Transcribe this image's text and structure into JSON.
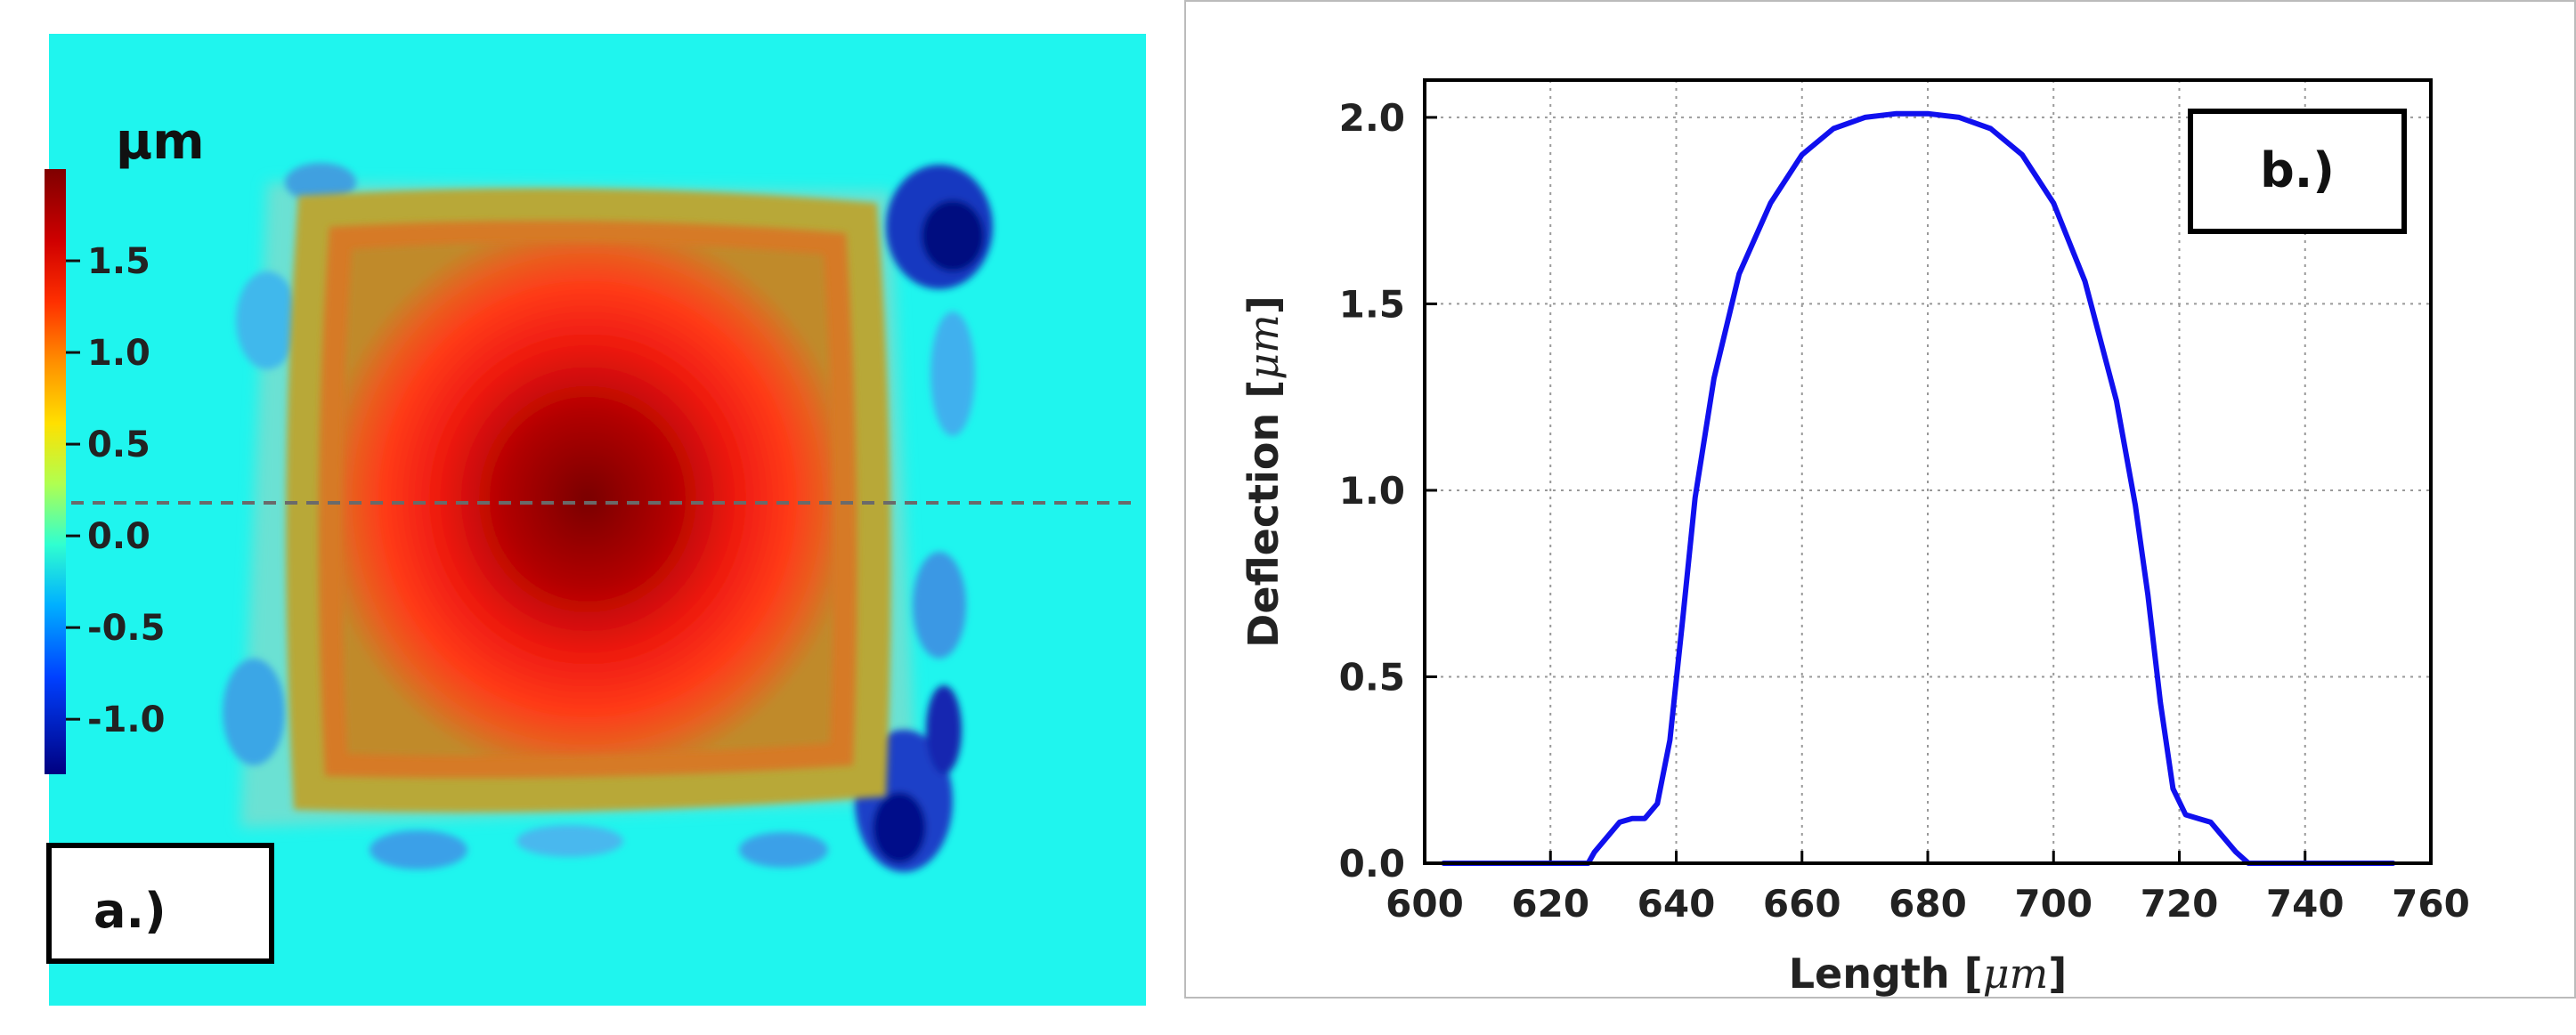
{
  "panel_a": {
    "unit_label": "μm",
    "colorbar_ticks": [
      "1.5",
      "1.0",
      "0.5",
      "0.0",
      "-0.5",
      "-1.0"
    ],
    "colorbar_values": [
      1.5,
      1.0,
      0.5,
      0.0,
      -0.5,
      -1.0
    ],
    "colorbar_range": [
      -1.3,
      2.0
    ],
    "label": "a.)",
    "colors": {
      "background": "#1FFFF0",
      "dome_center": "#8B0000",
      "dome_mid": "#FF2010",
      "dome_rim": "#B8A830"
    }
  },
  "chart_data": {
    "type": "line",
    "label": "b.)",
    "xlabel": "Length",
    "ylabel": "Deflection",
    "unit": "μm",
    "xlim": [
      600,
      760
    ],
    "ylim": [
      0.0,
      2.1
    ],
    "xticks": [
      600,
      620,
      640,
      660,
      680,
      700,
      720,
      740,
      760
    ],
    "yticks": [
      0.0,
      0.5,
      1.0,
      1.5,
      2.0
    ],
    "xtick_labels": [
      "600",
      "620",
      "640",
      "660",
      "680",
      "700",
      "720",
      "740",
      "760"
    ],
    "ytick_labels": [
      "0.0",
      "0.5",
      "1.0",
      "1.5",
      "2.0"
    ],
    "grid": true,
    "series": [
      {
        "name": "deflection",
        "color": "#1010EE",
        "x": [
          603,
          610,
          620,
          626,
          627,
          629,
          631,
          633,
          635,
          637,
          639,
          641,
          643,
          646,
          650,
          655,
          660,
          665,
          670,
          675,
          680,
          685,
          690,
          695,
          700,
          705,
          710,
          713,
          715,
          717,
          719,
          721,
          723,
          725,
          727,
          729,
          731,
          735,
          745,
          754
        ],
        "y": [
          0.0,
          0.0,
          0.0,
          0.0,
          0.03,
          0.07,
          0.11,
          0.12,
          0.12,
          0.16,
          0.33,
          0.65,
          0.98,
          1.3,
          1.58,
          1.77,
          1.9,
          1.97,
          2.0,
          2.01,
          2.01,
          2.0,
          1.97,
          1.9,
          1.77,
          1.56,
          1.24,
          0.96,
          0.72,
          0.43,
          0.2,
          0.13,
          0.12,
          0.11,
          0.07,
          0.03,
          0.0,
          0.0,
          0.0,
          0.0
        ]
      }
    ]
  }
}
